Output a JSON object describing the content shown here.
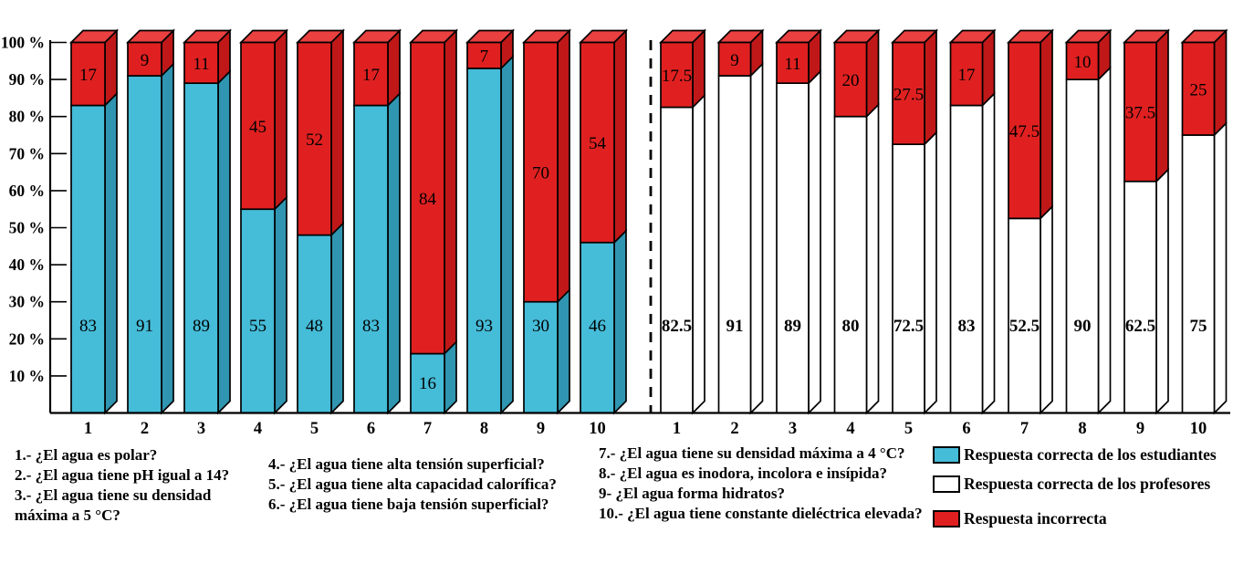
{
  "chart_data": {
    "type": "bar",
    "variant": "3d-stacked-percentage-columns",
    "title": "",
    "xlabel": "",
    "ylabel": "",
    "ylim": [
      0,
      100
    ],
    "grid": false,
    "y_tick_labels": [
      "100 %",
      "90 %",
      "80 %",
      "70 %",
      "60 %",
      "50 %",
      "40 %",
      "30 %",
      "20 %",
      "10 %"
    ],
    "categories": [
      "1",
      "2",
      "3",
      "4",
      "5",
      "6",
      "7",
      "8",
      "9",
      "10"
    ],
    "groups": [
      {
        "name": "estudiantes",
        "series": [
          {
            "name": "Respuesta correcta de los estudiantes",
            "values": [
              83,
              91,
              89,
              55,
              48,
              83,
              16,
              93,
              30,
              46
            ]
          },
          {
            "name": "Respuesta incorrecta",
            "values": [
              17,
              9,
              11,
              45,
              52,
              17,
              84,
              7,
              70,
              54
            ]
          }
        ]
      },
      {
        "name": "profesores",
        "series": [
          {
            "name": "Respuesta correcta de los profesores",
            "values": [
              82.5,
              91,
              89,
              80,
              72.5,
              83,
              52.5,
              90,
              62.5,
              75
            ]
          },
          {
            "name": "Respuesta incorrecta",
            "values": [
              17.5,
              9,
              11,
              20,
              27.5,
              17,
              47.5,
              10,
              37.5,
              25
            ]
          }
        ]
      }
    ],
    "legend": [
      {
        "label": "Respuesta correcta de los estudiantes",
        "color": "#45BCD8"
      },
      {
        "label": "Respuesta correcta de los profesores",
        "color": "#FFFFFF"
      },
      {
        "label": "Respuesta incorrecta",
        "color": "#E02020"
      }
    ],
    "legend_position": "bottom-right",
    "separator": "dashed vertical line between student and professor groups"
  },
  "colors": {
    "student_front": "#45BCD8",
    "student_side": "#3095B0",
    "student_top": "#63CBE2",
    "professor_front": "#FFFFFF",
    "professor_side": "#FFFFFF",
    "professor_top": "#FFFFFF",
    "incorrect_front": "#E02020",
    "incorrect_side": "#C01818",
    "incorrect_top": "#EA4040",
    "outline": "#000000"
  },
  "questions": [
    "1.- ¿El agua es polar?",
    "2.- ¿El agua tiene pH igual a 14?",
    "3.- ¿El agua tiene su densidad máxima a 5 °C?",
    "4.- ¿El agua tiene alta tensión superficial?",
    "5.- ¿El agua tiene alta capacidad calorífica?",
    "6.- ¿El agua tiene baja tensión superficial?",
    "7.- ¿El agua tiene su densidad máxima a 4 °C?",
    "8.- ¿El agua es inodora, incolora e insípida?",
    "9- ¿El agua forma hidratos?",
    "10.- ¿El agua tiene constante dieléctrica elevada?"
  ]
}
